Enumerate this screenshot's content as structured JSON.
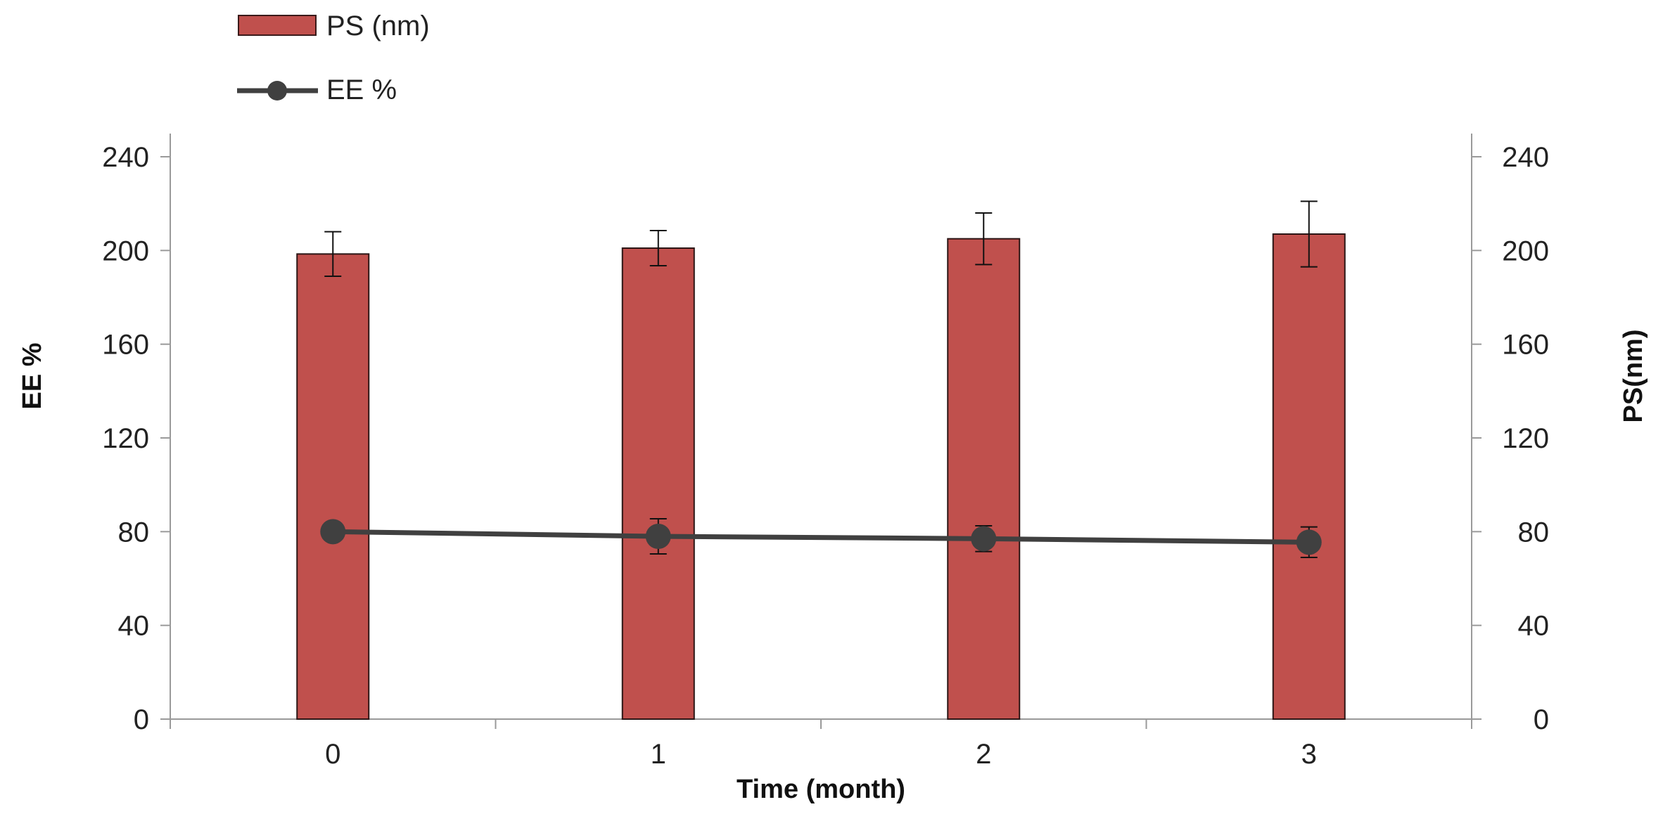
{
  "chart_data": {
    "type": "bar",
    "xlabel": "Time (month)",
    "ylabel_left": "EE %",
    "ylabel_right": "PS(nm)",
    "categories": [
      "0",
      "1",
      "2",
      "3"
    ],
    "yticks": [
      0,
      40,
      80,
      120,
      160,
      200,
      240
    ],
    "ylim": [
      0,
      240
    ],
    "legend_position": "top-left",
    "grid": false,
    "series": [
      {
        "name": "PS (nm)",
        "kind": "bar",
        "axis": "right",
        "values": [
          198.5,
          201,
          205,
          207
        ],
        "errors": [
          9.5,
          7.5,
          11,
          14
        ],
        "color": "#c0504d"
      },
      {
        "name": "EE %",
        "kind": "line",
        "axis": "left",
        "values": [
          80,
          78,
          77,
          75.5
        ],
        "errors": [
          0,
          7.5,
          5.5,
          6.5
        ],
        "color": "#404040"
      }
    ]
  }
}
